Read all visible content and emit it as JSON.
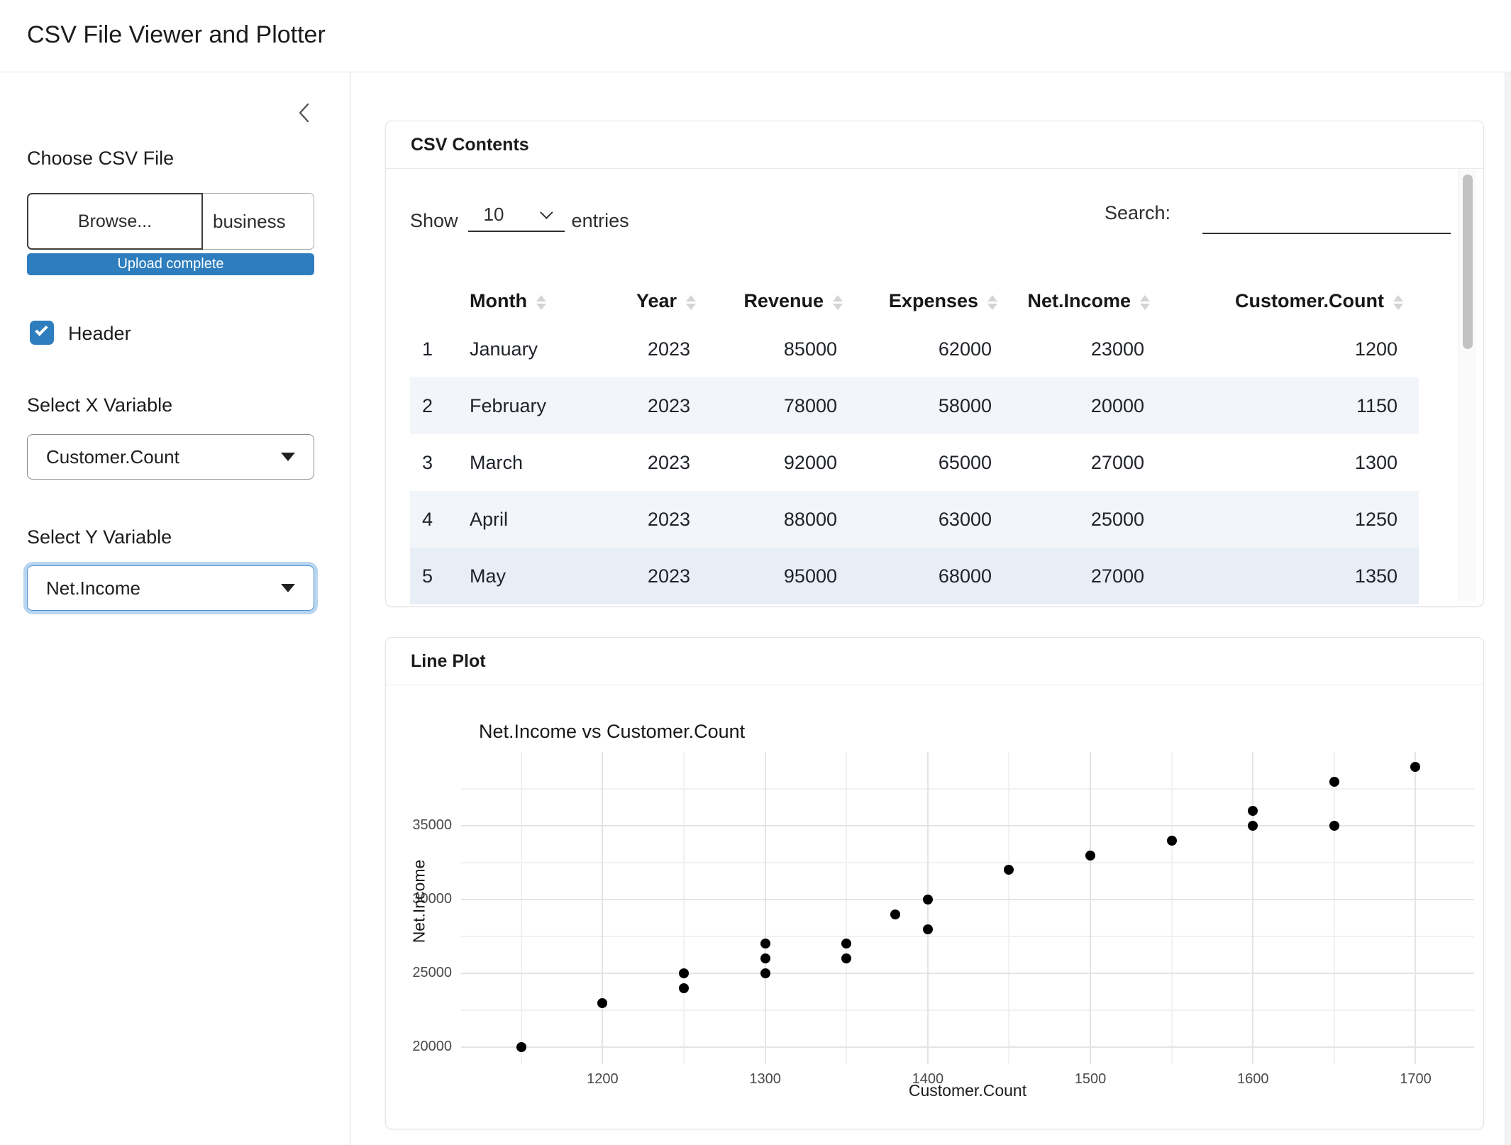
{
  "app": {
    "title": "CSV File Viewer and Plotter"
  },
  "sidebar": {
    "file_label": "Choose CSV File",
    "browse_label": "Browse...",
    "filename": "business",
    "upload_status": "Upload complete",
    "header_label": "Header",
    "header_checked": true,
    "x_label": "Select X Variable",
    "x_value": "Customer.Count",
    "y_label": "Select Y Variable",
    "y_value": "Net.Income"
  },
  "csv_card": {
    "title": "CSV Contents",
    "show_label": "Show",
    "page_size": "10",
    "entries_label": "entries",
    "search_label": "Search:",
    "search_value": "",
    "columns": [
      "",
      "Month",
      "Year",
      "Revenue",
      "Expenses",
      "Net.Income",
      "Customer.Count"
    ],
    "rows": [
      [
        "1",
        "January",
        "2023",
        "85000",
        "62000",
        "23000",
        "1200"
      ],
      [
        "2",
        "February",
        "2023",
        "78000",
        "58000",
        "20000",
        "1150"
      ],
      [
        "3",
        "March",
        "2023",
        "92000",
        "65000",
        "27000",
        "1300"
      ],
      [
        "4",
        "April",
        "2023",
        "88000",
        "63000",
        "25000",
        "1250"
      ],
      [
        "5",
        "May",
        "2023",
        "95000",
        "68000",
        "27000",
        "1350"
      ]
    ]
  },
  "plot_card": {
    "title": "Line Plot"
  },
  "chart_data": {
    "type": "scatter",
    "title": "Net.Income vs Customer.Count",
    "xlabel": "Customer.Count",
    "ylabel": "Net.Income",
    "x_ticks": [
      1200,
      1300,
      1400,
      1500,
      1600,
      1700
    ],
    "y_ticks": [
      20000,
      25000,
      30000,
      35000
    ],
    "xlim": [
      1113,
      1736
    ],
    "ylim": [
      18850,
      40000
    ],
    "grid": true,
    "legend": false,
    "point_color": "#000000",
    "points": [
      [
        1150,
        20000
      ],
      [
        1200,
        23000
      ],
      [
        1250,
        24000
      ],
      [
        1250,
        25000
      ],
      [
        1300,
        25000
      ],
      [
        1300,
        26000
      ],
      [
        1300,
        27000
      ],
      [
        1350,
        26000
      ],
      [
        1350,
        27000
      ],
      [
        1380,
        29000
      ],
      [
        1400,
        28000
      ],
      [
        1400,
        30000
      ],
      [
        1450,
        32000
      ],
      [
        1500,
        33000
      ],
      [
        1550,
        34000
      ],
      [
        1600,
        35000
      ],
      [
        1600,
        36000
      ],
      [
        1650,
        35000
      ],
      [
        1650,
        38000
      ],
      [
        1700,
        39000
      ]
    ]
  },
  "colors": {
    "primary": "#2e7dbe",
    "stripe": "#f2f5f9",
    "hover_row": "#e8eef5"
  }
}
